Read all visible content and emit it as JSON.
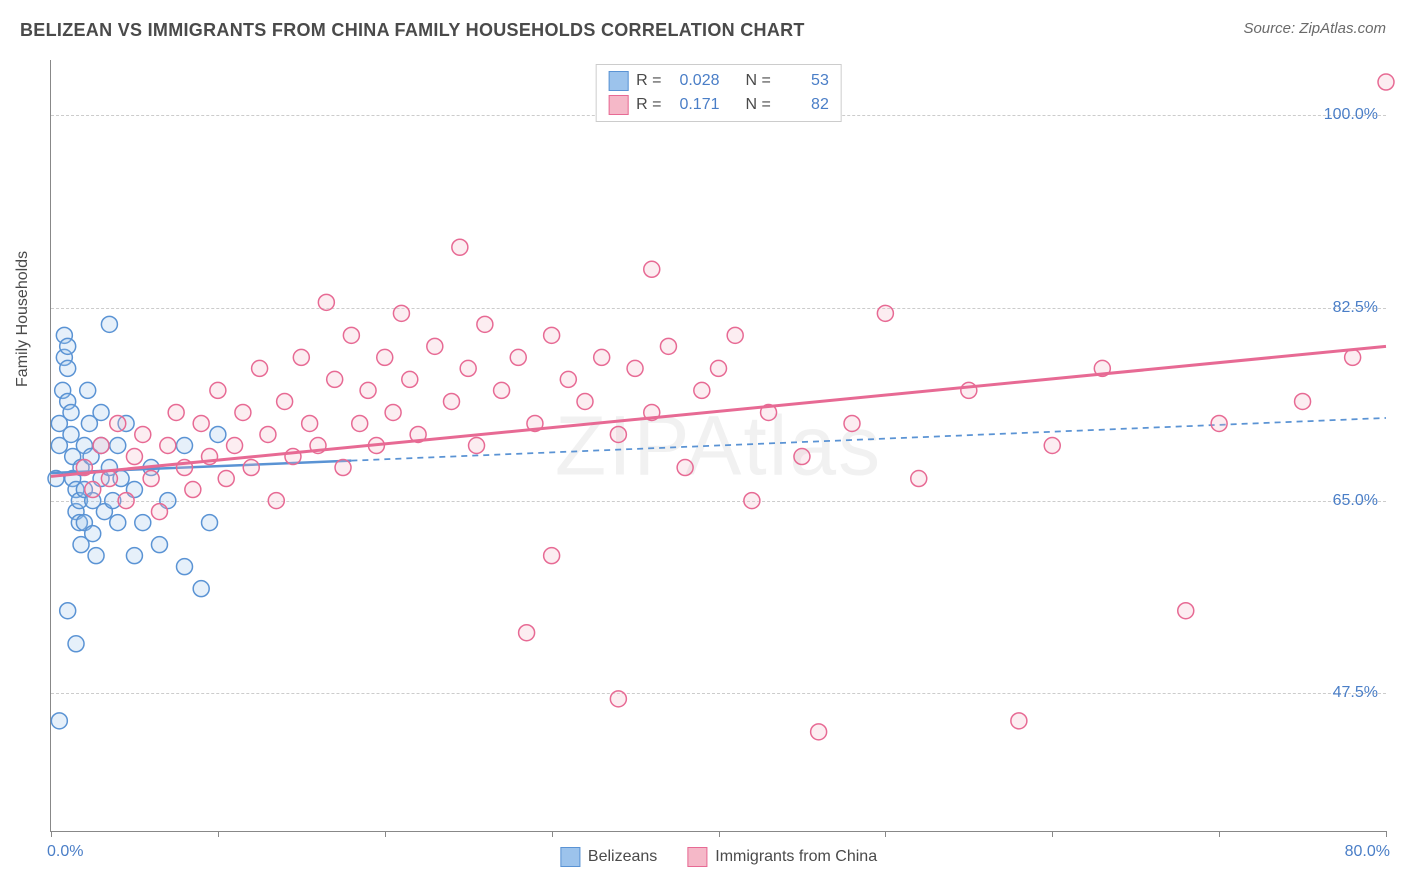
{
  "header": {
    "title": "BELIZEAN VS IMMIGRANTS FROM CHINA FAMILY HOUSEHOLDS CORRELATION CHART",
    "source": "Source: ZipAtlas.com"
  },
  "watermark": "ZIPAtlas",
  "chart": {
    "type": "scatter",
    "background_color": "#ffffff",
    "grid_color": "#cccccc",
    "axis_color": "#888888",
    "tick_label_color": "#4a7ec7",
    "text_color": "#4a4a4a",
    "y_axis_title": "Family Households",
    "xlim": [
      0,
      80
    ],
    "ylim": [
      35,
      105
    ],
    "x_ticks": [
      0,
      10,
      20,
      30,
      40,
      50,
      60,
      70,
      80
    ],
    "x_start_label": "0.0%",
    "x_end_label": "80.0%",
    "y_gridlines": [
      47.5,
      65.0,
      82.5,
      100.0
    ],
    "y_tick_labels": [
      "47.5%",
      "65.0%",
      "82.5%",
      "100.0%"
    ],
    "marker_radius": 8,
    "marker_stroke_width": 1.5,
    "fill_opacity": 0.25,
    "series": [
      {
        "id": "belizeans",
        "label": "Belizeans",
        "color_fill": "#9cc3ec",
        "color_stroke": "#5a93d4",
        "r_value": "0.028",
        "n_value": "53",
        "trend": {
          "x1": 0,
          "y1": 67.5,
          "x2": 80,
          "y2": 72.5,
          "solid_until_x": 18,
          "stroke_width": 2.5,
          "dash": "6,5"
        },
        "points": [
          [
            0.3,
            67
          ],
          [
            0.5,
            70
          ],
          [
            0.5,
            72
          ],
          [
            0.7,
            75
          ],
          [
            0.8,
            78
          ],
          [
            0.8,
            80
          ],
          [
            1.0,
            79
          ],
          [
            1.0,
            77
          ],
          [
            1.0,
            74
          ],
          [
            1.2,
            73
          ],
          [
            1.2,
            71
          ],
          [
            1.3,
            69
          ],
          [
            1.3,
            67
          ],
          [
            1.5,
            66
          ],
          [
            1.5,
            64
          ],
          [
            1.7,
            63
          ],
          [
            1.7,
            65
          ],
          [
            1.8,
            68
          ],
          [
            2.0,
            70
          ],
          [
            2.0,
            66
          ],
          [
            2.0,
            63
          ],
          [
            2.2,
            75
          ],
          [
            2.3,
            72
          ],
          [
            2.4,
            69
          ],
          [
            2.5,
            65
          ],
          [
            2.5,
            62
          ],
          [
            2.7,
            60
          ],
          [
            3.0,
            67
          ],
          [
            3.0,
            70
          ],
          [
            3.0,
            73
          ],
          [
            3.2,
            64
          ],
          [
            3.5,
            68
          ],
          [
            3.7,
            65
          ],
          [
            4.0,
            70
          ],
          [
            4.0,
            63
          ],
          [
            4.2,
            67
          ],
          [
            4.5,
            72
          ],
          [
            5.0,
            60
          ],
          [
            5.0,
            66
          ],
          [
            5.5,
            63
          ],
          [
            6.0,
            68
          ],
          [
            6.5,
            61
          ],
          [
            7.0,
            65
          ],
          [
            8.0,
            59
          ],
          [
            8.0,
            70
          ],
          [
            9.0,
            57
          ],
          [
            9.5,
            63
          ],
          [
            10.0,
            71
          ],
          [
            1.0,
            55
          ],
          [
            1.5,
            52
          ],
          [
            3.5,
            81
          ],
          [
            0.5,
            45
          ],
          [
            1.8,
            61
          ]
        ]
      },
      {
        "id": "immigrants-china",
        "label": "Immigrants from China",
        "color_fill": "#f5b8c8",
        "color_stroke": "#e76a94",
        "r_value": "0.171",
        "n_value": "82",
        "trend": {
          "x1": 0,
          "y1": 67.2,
          "x2": 80,
          "y2": 79.0,
          "solid_until_x": 80,
          "stroke_width": 3,
          "dash": ""
        },
        "points": [
          [
            2,
            68
          ],
          [
            2.5,
            66
          ],
          [
            3,
            70
          ],
          [
            3.5,
            67
          ],
          [
            4,
            72
          ],
          [
            4.5,
            65
          ],
          [
            5,
            69
          ],
          [
            5.5,
            71
          ],
          [
            6,
            67
          ],
          [
            6.5,
            64
          ],
          [
            7,
            70
          ],
          [
            7.5,
            73
          ],
          [
            8,
            68
          ],
          [
            8.5,
            66
          ],
          [
            9,
            72
          ],
          [
            9.5,
            69
          ],
          [
            10,
            75
          ],
          [
            10.5,
            67
          ],
          [
            11,
            70
          ],
          [
            11.5,
            73
          ],
          [
            12,
            68
          ],
          [
            12.5,
            77
          ],
          [
            13,
            71
          ],
          [
            13.5,
            65
          ],
          [
            14,
            74
          ],
          [
            14.5,
            69
          ],
          [
            15,
            78
          ],
          [
            15.5,
            72
          ],
          [
            16,
            70
          ],
          [
            16.5,
            83
          ],
          [
            17,
            76
          ],
          [
            17.5,
            68
          ],
          [
            18,
            80
          ],
          [
            18.5,
            72
          ],
          [
            19,
            75
          ],
          [
            19.5,
            70
          ],
          [
            20,
            78
          ],
          [
            20.5,
            73
          ],
          [
            21,
            82
          ],
          [
            21.5,
            76
          ],
          [
            22,
            71
          ],
          [
            23,
            79
          ],
          [
            24,
            74
          ],
          [
            24.5,
            88
          ],
          [
            25,
            77
          ],
          [
            25.5,
            70
          ],
          [
            26,
            81
          ],
          [
            27,
            75
          ],
          [
            28,
            78
          ],
          [
            28.5,
            53
          ],
          [
            29,
            72
          ],
          [
            30,
            80
          ],
          [
            30,
            60
          ],
          [
            31,
            76
          ],
          [
            32,
            74
          ],
          [
            33,
            78
          ],
          [
            34,
            71
          ],
          [
            35,
            77
          ],
          [
            36,
            73
          ],
          [
            36,
            86
          ],
          [
            37,
            79
          ],
          [
            38,
            68
          ],
          [
            39,
            75
          ],
          [
            40,
            77
          ],
          [
            41,
            80
          ],
          [
            42,
            65
          ],
          [
            43,
            73
          ],
          [
            45,
            69
          ],
          [
            46,
            44
          ],
          [
            48,
            72
          ],
          [
            50,
            82
          ],
          [
            52,
            67
          ],
          [
            55,
            75
          ],
          [
            58,
            45
          ],
          [
            60,
            70
          ],
          [
            63,
            77
          ],
          [
            68,
            55
          ],
          [
            70,
            72
          ],
          [
            75,
            74
          ],
          [
            78,
            78
          ],
          [
            80,
            103
          ],
          [
            34,
            47
          ]
        ]
      }
    ]
  },
  "top_legend": {
    "r_label": "R =",
    "n_label": "N ="
  }
}
